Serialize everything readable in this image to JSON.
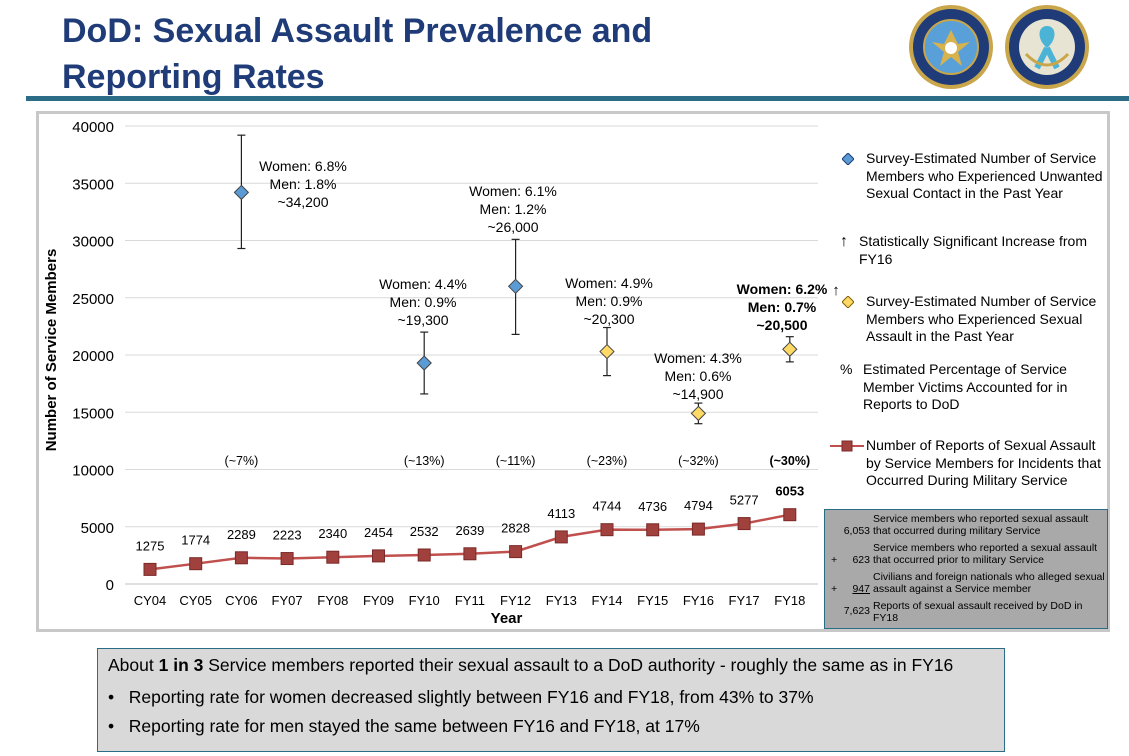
{
  "title": {
    "line1": "DoD: Sexual Assault Prevalence and",
    "line2": "Reporting Rates"
  },
  "logos": {
    "left": "department-of-defense-seal",
    "right": "sexual-assault-prevention-and-response-seal"
  },
  "chart_data": {
    "type": "line",
    "categories": [
      "CY04",
      "CY05",
      "CY06",
      "FY07",
      "FY08",
      "FY09",
      "FY10",
      "FY11",
      "FY12",
      "FY13",
      "FY14",
      "FY15",
      "FY16",
      "FY17",
      "FY18"
    ],
    "ylim": [
      0,
      40000
    ],
    "yticks": [
      0,
      5000,
      10000,
      15000,
      20000,
      25000,
      30000,
      35000,
      40000
    ],
    "xlabel": "Year",
    "ylabel": "Number of Service Members",
    "grid": true,
    "legend_position": "right",
    "series": [
      {
        "name": "Number of Reports of Sexual Assault by Service Members for Incidents that Occurred During Military Service",
        "kind": "line",
        "color": "#c0504d",
        "values": [
          1275,
          1774,
          2289,
          2223,
          2340,
          2454,
          2532,
          2639,
          2828,
          4113,
          4744,
          4736,
          4794,
          5277,
          6053
        ],
        "labels": [
          "1275",
          "1774",
          "2289",
          "2223",
          "2340",
          "2454",
          "2532",
          "2639",
          "2828",
          "4113",
          "4744",
          "4736",
          "4794",
          "5277",
          "6053"
        ]
      },
      {
        "name": "Survey-Estimated Number of Service Members who Experienced Unwanted Sexual Contact in the Past Year",
        "kind": "diamond",
        "color": "#5b9bd5",
        "points": [
          {
            "category": "CY06",
            "value": 34200,
            "err_low": 29300,
            "err_high": 39200
          },
          {
            "category": "FY10",
            "value": 19300,
            "err_low": 16600,
            "err_high": 22000
          },
          {
            "category": "FY12",
            "value": 26000,
            "err_low": 21800,
            "err_high": 30100
          }
        ]
      },
      {
        "name": "Survey-Estimated Number of Service Members who Experienced Sexual Assault in the Past Year",
        "kind": "diamond",
        "color": "#ffd966",
        "points": [
          {
            "category": "FY14",
            "value": 20300,
            "err_low": 18200,
            "err_high": 22400
          },
          {
            "category": "FY16",
            "value": 14900,
            "err_low": 14000,
            "err_high": 15800
          },
          {
            "category": "FY18",
            "value": 20500,
            "err_low": 19400,
            "err_high": 21600
          }
        ]
      }
    ],
    "annotations": [
      {
        "category": "CY06",
        "lines": [
          "Women: 6.8%",
          "Men: 1.8%",
          "~34,200"
        ],
        "bold": false
      },
      {
        "category": "FY10",
        "lines": [
          "Women: 4.4%",
          "Men: 0.9%",
          "~19,300"
        ],
        "bold": false
      },
      {
        "category": "FY12",
        "lines": [
          "Women: 6.1%",
          "Men: 1.2%",
          "~26,000"
        ],
        "bold": false
      },
      {
        "category": "FY14",
        "lines": [
          "Women: 4.9%",
          "Men: 0.9%",
          "~20,300"
        ],
        "bold": false
      },
      {
        "category": "FY16",
        "lines": [
          "Women: 4.3%",
          "Men: 0.6%",
          "~14,900"
        ],
        "bold": false
      },
      {
        "category": "FY18",
        "lines": [
          "Women: 6.2%",
          "Men: 0.7%",
          "~20,500"
        ],
        "bold": true,
        "marker": "↑"
      }
    ],
    "percentages": [
      {
        "category": "CY06",
        "label": "(~7%)",
        "bold": false
      },
      {
        "category": "FY10",
        "label": "(~13%)",
        "bold": false
      },
      {
        "category": "FY12",
        "label": "(~11%)",
        "bold": false
      },
      {
        "category": "FY14",
        "label": "(~23%)",
        "bold": false
      },
      {
        "category": "FY16",
        "label": "(~32%)",
        "bold": false
      },
      {
        "category": "FY18",
        "label": "(~30%)",
        "bold": true
      }
    ]
  },
  "legend": {
    "unwanted_contact": "Survey-Estimated Number of Service Members who Experienced Unwanted Sexual Contact in the Past Year",
    "significant_symbol": "↑",
    "significant": "Statistically Significant Increase from FY16",
    "sexual_assault": "Survey-Estimated Number of Service Members who Experienced Sexual Assault in the Past Year",
    "percent_symbol": "%",
    "percent": "Estimated Percentage of Service Member Victims Accounted for in Reports to DoD",
    "reports": "Number of Reports of Sexual Assault by Service Members for Incidents that Occurred During Military Service"
  },
  "breakdown": [
    {
      "op": "",
      "value": "6,053",
      "desc": "Service members who reported sexual assault that occurred during military Service"
    },
    {
      "op": "+",
      "value": "623",
      "desc": "Service members who reported a sexual assault that occurred prior to military Service"
    },
    {
      "op": "+",
      "value": "947",
      "desc": "Civilians and foreign nationals who alleged sexual assault against a Service member"
    },
    {
      "op": "",
      "value": "7,623",
      "desc": "Reports of sexual assault received by DoD in FY18"
    }
  ],
  "summary": {
    "lead_before": "About ",
    "lead_bold": "1 in 3",
    "lead_after": " Service members reported their sexual assault to a DoD authority - roughly the same as in FY16",
    "bullet_symbol": "•",
    "bullets": [
      "Reporting rate for women decreased slightly between FY16 and FY18, from 43% to 37%",
      "Reporting rate for men stayed the same between FY16 and FY18, at 17%"
    ]
  }
}
